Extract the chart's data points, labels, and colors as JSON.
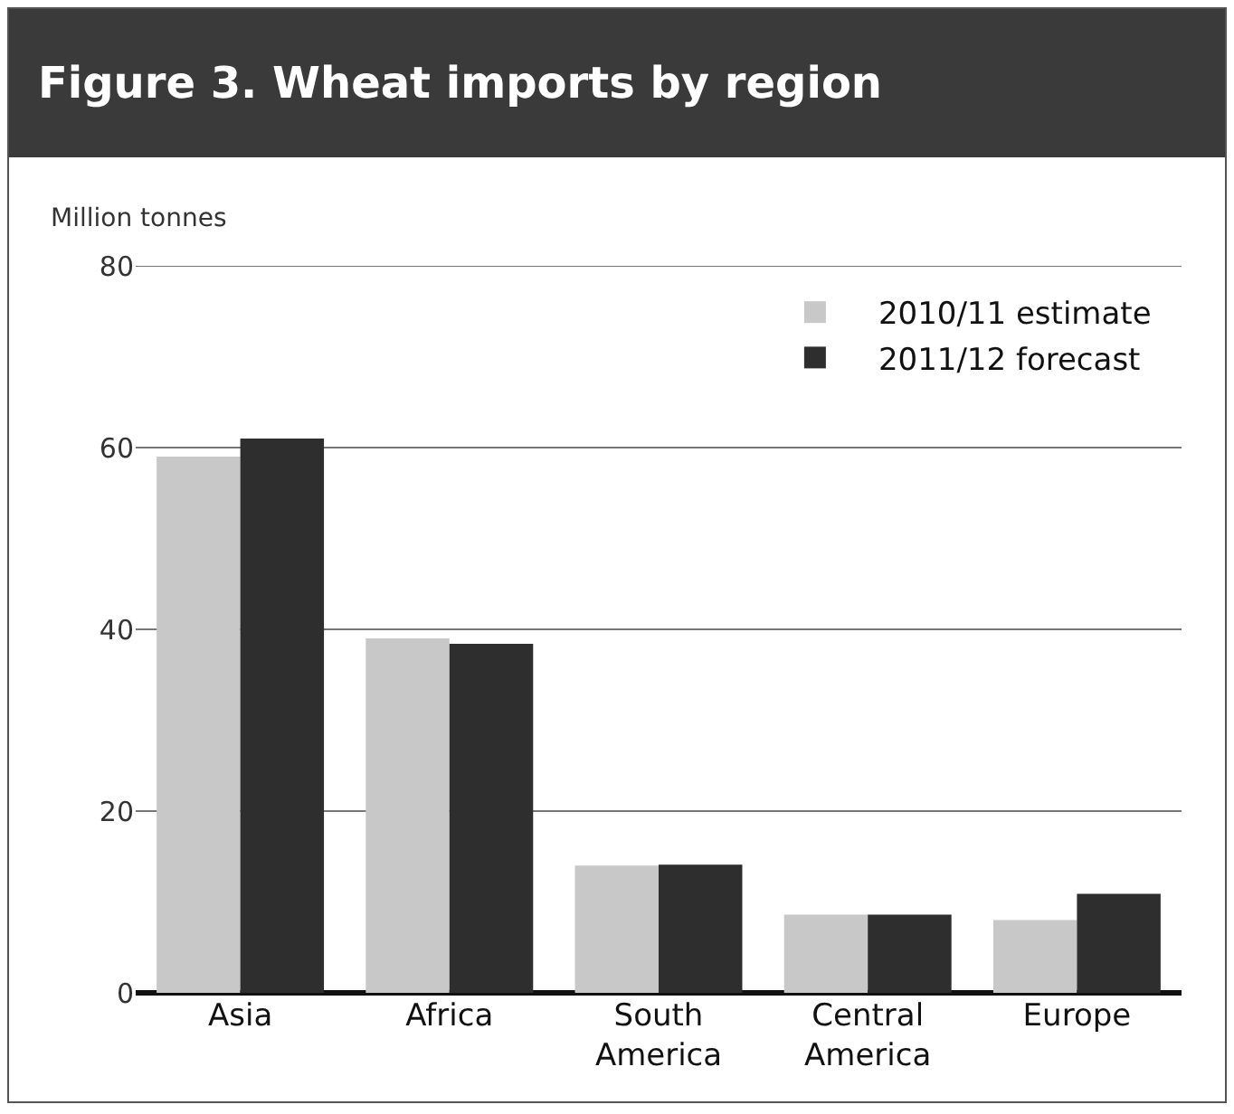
{
  "chart_data": {
    "type": "bar",
    "title": "Figure 3. Wheat imports by region",
    "ylabel": "Million tonnes",
    "categories": [
      "Asia",
      "Africa",
      "South America",
      "Central America",
      "Europe"
    ],
    "series": [
      {
        "name": "2010/11 estimate",
        "color": "#c8c8c8",
        "values": [
          59,
          39,
          14,
          8.6,
          8
        ]
      },
      {
        "name": "2011/12 forecast",
        "color": "#2e2e2e",
        "values": [
          61,
          38.4,
          14.1,
          8.6,
          10.9
        ]
      }
    ],
    "ylim": [
      0,
      80
    ],
    "yticks": [
      0,
      20,
      40,
      60,
      80
    ],
    "grid": "y",
    "legend": "top right"
  }
}
